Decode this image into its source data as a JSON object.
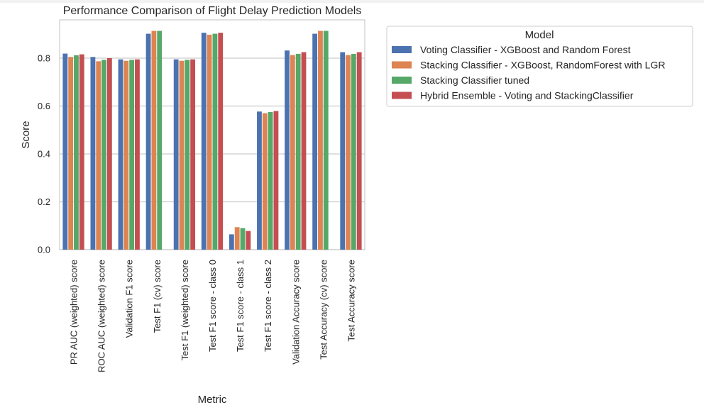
{
  "chart_data": {
    "type": "bar",
    "title": "Performance Comparison of Flight Delay Prediction Models",
    "xlabel": "Metric",
    "ylabel": "Score",
    "ylim": [
      0,
      0.96
    ],
    "yticks": [
      "0.0",
      "0.2",
      "0.4",
      "0.6",
      "0.8"
    ],
    "grid": true,
    "legend_title": "Model",
    "legend_placement": "outside-right",
    "categories": [
      "PR AUC (weighted) score",
      "ROC AUC (weighted) score",
      "Validation F1 score",
      "Test F1 (cv) score",
      "Test F1 (weighted) score",
      "Test F1 score - class 0",
      "Test F1 score - class 1",
      "Test F1 score - class 2",
      "Validation Accuracy score",
      "Test Accuracy (cv) score",
      "Test Accuracy score"
    ],
    "series": [
      {
        "name": "Voting Classifier - XGBoost and Random Forest",
        "color": "#4c72b0",
        "values": [
          0.819,
          0.805,
          0.795,
          0.902,
          0.795,
          0.906,
          0.064,
          0.577,
          0.832,
          0.902,
          0.825
        ]
      },
      {
        "name": "Stacking Classifier - XGBoost, RandomForest with LGR",
        "color": "#dd8452",
        "values": [
          0.805,
          0.787,
          0.789,
          0.914,
          0.789,
          0.898,
          0.094,
          0.57,
          0.813,
          0.914,
          0.813
        ]
      },
      {
        "name": "Stacking Classifier tuned",
        "color": "#55a868",
        "values": [
          0.812,
          0.793,
          0.793,
          0.914,
          0.793,
          0.902,
          0.09,
          0.575,
          0.818,
          0.914,
          0.818
        ]
      },
      {
        "name": "Hybrid Ensemble - Voting and StackingClassifier",
        "color": "#c44e52",
        "values": [
          0.816,
          0.8,
          0.795,
          null,
          0.795,
          0.906,
          0.078,
          0.579,
          0.825,
          null,
          0.825
        ]
      }
    ]
  }
}
